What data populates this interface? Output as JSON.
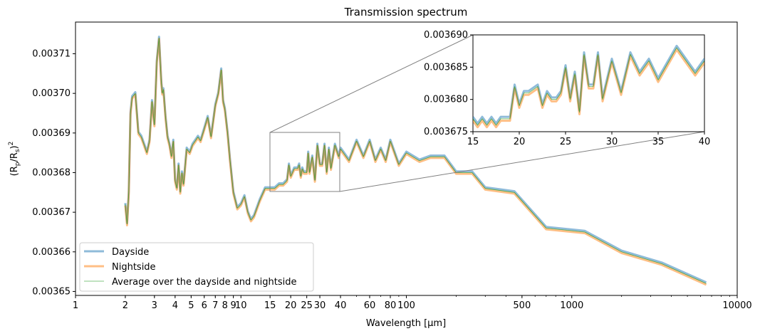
{
  "chart_data": {
    "type": "line",
    "title": "Transmission spectrum",
    "xlabel": "Wavelength [µm]",
    "ylabel_parts": {
      "base": "(R",
      "sub1": "p",
      "mid": "/R",
      "sub2": "s",
      "close": ")",
      "sup": "2"
    },
    "x_scale": "log",
    "xlim": [
      1,
      10000
    ],
    "ylim": [
      0.003649,
      0.003718
    ],
    "x_tick_values": [
      1,
      2,
      3,
      4,
      5,
      6,
      7,
      8,
      9,
      10,
      15,
      20,
      25,
      30,
      40,
      60,
      80,
      100,
      500,
      1000,
      10000
    ],
    "x_tick_labels": [
      "1",
      "2",
      "3",
      "4",
      "5",
      "6",
      "7",
      "8",
      "9",
      "10",
      "15",
      "20",
      "25",
      "30",
      "40",
      "60",
      "80",
      "100",
      "500",
      "1000",
      "10000"
    ],
    "y_tick_values": [
      0.00365,
      0.00366,
      0.00367,
      0.00368,
      0.00369,
      0.0037,
      0.00371
    ],
    "y_tick_labels": [
      "0.00365",
      "0.00366",
      "0.00367",
      "0.00368",
      "0.00369",
      "0.00370",
      "0.00371"
    ],
    "legend_position": "lower-left",
    "series": [
      {
        "name": "Dayside",
        "color": "#1f77b4",
        "offset": 3e-07,
        "x": [
          2.0,
          2.05,
          2.1,
          2.15,
          2.2,
          2.3,
          2.4,
          2.5,
          2.6,
          2.7,
          2.8,
          2.9,
          3.0,
          3.1,
          3.2,
          3.3,
          3.35,
          3.4,
          3.5,
          3.6,
          3.7,
          3.8,
          3.9,
          4.0,
          4.1,
          4.2,
          4.3,
          4.4,
          4.5,
          4.7,
          4.9,
          5.1,
          5.3,
          5.5,
          5.7,
          6.0,
          6.3,
          6.6,
          7.0,
          7.3,
          7.6,
          7.8,
          8.0,
          8.3,
          8.6,
          9.0,
          9.5,
          10.0,
          10.5,
          11.0,
          11.5,
          12.0,
          13.0,
          14.0,
          15.0,
          16.0,
          17.0,
          18.0,
          19.0,
          19.5,
          20.0,
          21.0,
          22.0,
          22.5,
          23.0,
          23.5,
          24.0,
          25.0,
          25.5,
          26.0,
          27.0,
          28.0,
          29.0,
          30.0,
          31.0,
          32.0,
          33.0,
          34.0,
          35.0,
          37.0,
          39.0,
          40.0,
          45.0,
          50.0,
          55.0,
          60.0,
          65.0,
          70.0,
          75.0,
          80.0,
          90.0,
          100.0,
          120.0,
          140.0,
          170.0,
          200.0,
          250.0,
          300.0,
          450.0,
          700.0,
          1200.0,
          2000.0,
          3500.0,
          6500.0
        ],
        "values": [
          0.003672,
          0.003667,
          0.003675,
          0.003695,
          0.003699,
          0.0037,
          0.00369,
          0.003689,
          0.003687,
          0.003685,
          0.003688,
          0.003698,
          0.003692,
          0.003708,
          0.003714,
          0.003703,
          0.0037,
          0.003701,
          0.003694,
          0.003689,
          0.003687,
          0.003684,
          0.003688,
          0.003678,
          0.003676,
          0.003682,
          0.003675,
          0.00368,
          0.003677,
          0.003686,
          0.003685,
          0.003687,
          0.003688,
          0.003689,
          0.003688,
          0.003691,
          0.003694,
          0.003689,
          0.003697,
          0.0037,
          0.003706,
          0.003698,
          0.003696,
          0.00369,
          0.003683,
          0.003675,
          0.003671,
          0.003672,
          0.003674,
          0.00367,
          0.003668,
          0.003669,
          0.003673,
          0.003676,
          0.003676,
          0.003676,
          0.003677,
          0.003677,
          0.003678,
          0.003682,
          0.003679,
          0.003681,
          0.003681,
          0.003682,
          0.003679,
          0.003681,
          0.00368,
          0.00368,
          0.003685,
          0.00368,
          0.003684,
          0.003678,
          0.003687,
          0.003682,
          0.003682,
          0.003687,
          0.00368,
          0.003686,
          0.003681,
          0.003687,
          0.003684,
          0.003686,
          0.003683,
          0.003688,
          0.003684,
          0.003688,
          0.003683,
          0.003686,
          0.003683,
          0.003688,
          0.003682,
          0.003685,
          0.003683,
          0.003684,
          0.003684,
          0.00368,
          0.00368,
          0.003676,
          0.003675,
          0.003666,
          0.003665,
          0.00366,
          0.003657,
          0.003652
        ]
      },
      {
        "name": "Nightside",
        "color": "#ff7f0e",
        "offset": -3e-07,
        "x": [
          2.0,
          2.05,
          2.1,
          2.15,
          2.2,
          2.3,
          2.4,
          2.5,
          2.6,
          2.7,
          2.8,
          2.9,
          3.0,
          3.1,
          3.2,
          3.3,
          3.35,
          3.4,
          3.5,
          3.6,
          3.7,
          3.8,
          3.9,
          4.0,
          4.1,
          4.2,
          4.3,
          4.4,
          4.5,
          4.7,
          4.9,
          5.1,
          5.3,
          5.5,
          5.7,
          6.0,
          6.3,
          6.6,
          7.0,
          7.3,
          7.6,
          7.8,
          8.0,
          8.3,
          8.6,
          9.0,
          9.5,
          10.0,
          10.5,
          11.0,
          11.5,
          12.0,
          13.0,
          14.0,
          15.0,
          16.0,
          17.0,
          18.0,
          19.0,
          19.5,
          20.0,
          21.0,
          22.0,
          22.5,
          23.0,
          23.5,
          24.0,
          25.0,
          25.5,
          26.0,
          27.0,
          28.0,
          29.0,
          30.0,
          31.0,
          32.0,
          33.0,
          34.0,
          35.0,
          37.0,
          39.0,
          40.0,
          45.0,
          50.0,
          55.0,
          60.0,
          65.0,
          70.0,
          75.0,
          80.0,
          90.0,
          100.0,
          120.0,
          140.0,
          170.0,
          200.0,
          250.0,
          300.0,
          450.0,
          700.0,
          1200.0,
          2000.0,
          3500.0,
          6500.0
        ],
        "values": [
          0.003672,
          0.003667,
          0.003675,
          0.003695,
          0.003699,
          0.0037,
          0.00369,
          0.003689,
          0.003687,
          0.003685,
          0.003688,
          0.003698,
          0.003692,
          0.003708,
          0.003714,
          0.003703,
          0.0037,
          0.003701,
          0.003694,
          0.003689,
          0.003687,
          0.003684,
          0.003688,
          0.003678,
          0.003676,
          0.003682,
          0.003675,
          0.00368,
          0.003677,
          0.003686,
          0.003685,
          0.003687,
          0.003688,
          0.003689,
          0.003688,
          0.003691,
          0.003694,
          0.003689,
          0.003697,
          0.0037,
          0.003706,
          0.003698,
          0.003696,
          0.00369,
          0.003683,
          0.003675,
          0.003671,
          0.003672,
          0.003674,
          0.00367,
          0.003668,
          0.003669,
          0.003673,
          0.003676,
          0.003676,
          0.003676,
          0.003677,
          0.003677,
          0.003678,
          0.003682,
          0.003679,
          0.003681,
          0.003681,
          0.003682,
          0.003679,
          0.003681,
          0.00368,
          0.00368,
          0.003685,
          0.00368,
          0.003684,
          0.003678,
          0.003687,
          0.003682,
          0.003682,
          0.003687,
          0.00368,
          0.003686,
          0.003681,
          0.003687,
          0.003684,
          0.003686,
          0.003683,
          0.003688,
          0.003684,
          0.003688,
          0.003683,
          0.003686,
          0.003683,
          0.003688,
          0.003682,
          0.003685,
          0.003683,
          0.003684,
          0.003684,
          0.00368,
          0.00368,
          0.003676,
          0.003675,
          0.003666,
          0.003665,
          0.00366,
          0.003657,
          0.003652
        ]
      },
      {
        "name": "Average over the dayside and nightside",
        "color": "#2ca02c",
        "offset": 0,
        "x": [
          2.0,
          2.05,
          2.1,
          2.15,
          2.2,
          2.3,
          2.4,
          2.5,
          2.6,
          2.7,
          2.8,
          2.9,
          3.0,
          3.1,
          3.2,
          3.3,
          3.35,
          3.4,
          3.5,
          3.6,
          3.7,
          3.8,
          3.9,
          4.0,
          4.1,
          4.2,
          4.3,
          4.4,
          4.5,
          4.7,
          4.9,
          5.1,
          5.3,
          5.5,
          5.7,
          6.0,
          6.3,
          6.6,
          7.0,
          7.3,
          7.6,
          7.8,
          8.0,
          8.3,
          8.6,
          9.0,
          9.5,
          10.0,
          10.5,
          11.0,
          11.5,
          12.0,
          13.0,
          14.0,
          15.0,
          16.0,
          17.0,
          18.0,
          19.0,
          19.5,
          20.0,
          21.0,
          22.0,
          22.5,
          23.0,
          23.5,
          24.0,
          25.0,
          25.5,
          26.0,
          27.0,
          28.0,
          29.0,
          30.0,
          31.0,
          32.0,
          33.0,
          34.0,
          35.0,
          37.0,
          39.0,
          40.0,
          45.0,
          50.0,
          55.0,
          60.0,
          65.0,
          70.0,
          75.0,
          80.0,
          90.0,
          100.0,
          120.0,
          140.0,
          170.0,
          200.0,
          250.0,
          300.0,
          450.0,
          700.0,
          1200.0,
          2000.0,
          3500.0,
          6500.0
        ],
        "values": [
          0.003672,
          0.003667,
          0.003675,
          0.003695,
          0.003699,
          0.0037,
          0.00369,
          0.003689,
          0.003687,
          0.003685,
          0.003688,
          0.003698,
          0.003692,
          0.003708,
          0.003714,
          0.003703,
          0.0037,
          0.003701,
          0.003694,
          0.003689,
          0.003687,
          0.003684,
          0.003688,
          0.003678,
          0.003676,
          0.003682,
          0.003675,
          0.00368,
          0.003677,
          0.003686,
          0.003685,
          0.003687,
          0.003688,
          0.003689,
          0.003688,
          0.003691,
          0.003694,
          0.003689,
          0.003697,
          0.0037,
          0.003706,
          0.003698,
          0.003696,
          0.00369,
          0.003683,
          0.003675,
          0.003671,
          0.003672,
          0.003674,
          0.00367,
          0.003668,
          0.003669,
          0.003673,
          0.003676,
          0.003676,
          0.003676,
          0.003677,
          0.003677,
          0.003678,
          0.003682,
          0.003679,
          0.003681,
          0.003681,
          0.003682,
          0.003679,
          0.003681,
          0.00368,
          0.00368,
          0.003685,
          0.00368,
          0.003684,
          0.003678,
          0.003687,
          0.003682,
          0.003682,
          0.003687,
          0.00368,
          0.003686,
          0.003681,
          0.003687,
          0.003684,
          0.003686,
          0.003683,
          0.003688,
          0.003684,
          0.003688,
          0.003683,
          0.003686,
          0.003683,
          0.003688,
          0.003682,
          0.003685,
          0.003683,
          0.003684,
          0.003684,
          0.00368,
          0.00368,
          0.003676,
          0.003675,
          0.003666,
          0.003665,
          0.00366,
          0.003657,
          0.003652
        ]
      }
    ],
    "inset": {
      "xlim": [
        15,
        40
      ],
      "ylim": [
        0.003675,
        0.00369
      ],
      "x_tick_values": [
        15,
        20,
        25,
        30,
        35,
        40
      ],
      "x_tick_labels": [
        "15",
        "20",
        "25",
        "30",
        "35",
        "40"
      ],
      "y_tick_values": [
        0.003675,
        0.00368,
        0.003685,
        0.00369
      ],
      "y_tick_labels": [
        "0.003675",
        "0.003680",
        "0.003685",
        "0.003690"
      ],
      "x": [
        15.0,
        15.5,
        16.0,
        16.5,
        17.0,
        17.5,
        18.0,
        18.5,
        19.0,
        19.5,
        20.0,
        20.5,
        21.0,
        22.0,
        22.5,
        23.0,
        23.5,
        24.0,
        24.5,
        25.0,
        25.5,
        26.0,
        26.5,
        27.0,
        27.5,
        28.0,
        28.5,
        29.0,
        30.0,
        31.0,
        32.0,
        33.0,
        34.0,
        35.0,
        37.0,
        39.0,
        40.0
      ],
      "values": [
        0.003677,
        0.003676,
        0.003677,
        0.003676,
        0.003677,
        0.003676,
        0.003677,
        0.003677,
        0.003677,
        0.003682,
        0.003679,
        0.003681,
        0.003681,
        0.003682,
        0.003679,
        0.003681,
        0.00368,
        0.00368,
        0.003681,
        0.003685,
        0.00368,
        0.003684,
        0.003678,
        0.003687,
        0.003682,
        0.003682,
        0.003687,
        0.00368,
        0.003686,
        0.003681,
        0.003687,
        0.003684,
        0.003686,
        0.003683,
        0.003688,
        0.003684,
        0.003686
      ]
    }
  }
}
